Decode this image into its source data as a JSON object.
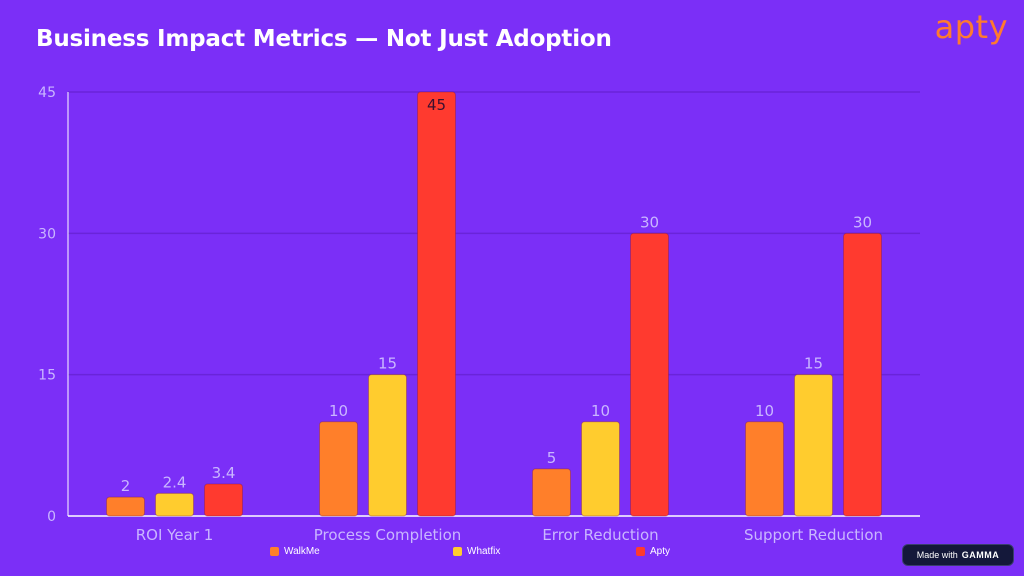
{
  "slide": {
    "title": "Business Impact Metrics — Not Just Adoption",
    "logo_text": "apty"
  },
  "badge": {
    "prefix": "Made with",
    "brand": "GAMMA"
  },
  "colors": {
    "background": "#7b2ff7",
    "gridline": "#6a24d9",
    "axis": "#ffffff",
    "tick_label": "#c9b6ff"
  },
  "chart_data": {
    "type": "bar",
    "title": "",
    "xlabel": "",
    "ylabel": "",
    "ylim": [
      0,
      45
    ],
    "yticks": [
      0,
      15,
      30,
      45
    ],
    "grid": true,
    "legend_position": "bottom",
    "categories": [
      "ROI Year 1",
      "Process Completion",
      "Error Reduction",
      "Support Reduction"
    ],
    "series": [
      {
        "name": "WalkMe",
        "color": "#ff7f2a",
        "values": [
          2,
          10,
          5,
          10
        ],
        "labels": [
          "2",
          "10",
          "5",
          "10"
        ]
      },
      {
        "name": "Whatfix",
        "color": "#ffcc2e",
        "values": [
          2.4,
          15,
          10,
          15
        ],
        "labels": [
          "2.4",
          "15",
          "10",
          "15"
        ]
      },
      {
        "name": "Apty",
        "color": "#ff3a2f",
        "values": [
          3.4,
          45,
          30,
          30
        ],
        "labels": [
          "3.4",
          "45",
          "30",
          "30"
        ]
      }
    ]
  }
}
